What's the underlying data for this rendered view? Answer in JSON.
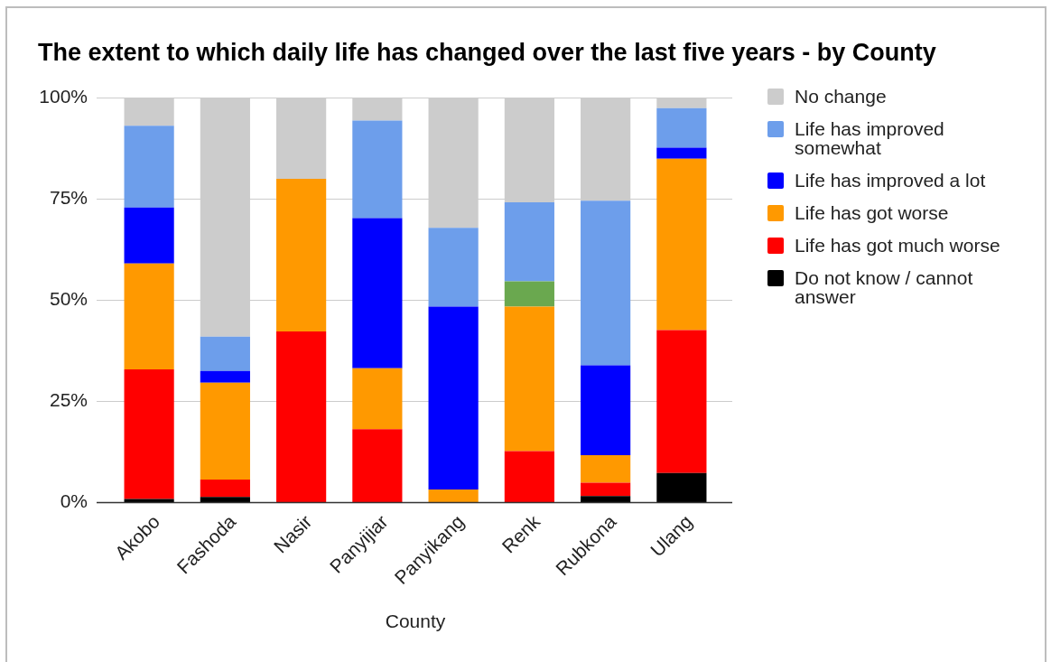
{
  "chart_data": {
    "type": "bar",
    "title": "The extent to which daily life has changed over the last five years - by County",
    "xlabel": "County",
    "categories": [
      "Akobo",
      "Fashoda",
      "Nasir",
      "Panyijiar",
      "Panyikang",
      "Renk",
      "Rubkona",
      "Ulang"
    ],
    "stacked": true,
    "ylim": [
      0,
      100
    ],
    "yticks": [
      {
        "value": 0,
        "label": "0%"
      },
      {
        "value": 25,
        "label": "25%"
      },
      {
        "value": 50,
        "label": "50%"
      },
      {
        "value": 75,
        "label": "75%"
      },
      {
        "value": 100,
        "label": "100%"
      }
    ],
    "grid": "y",
    "legend": "right",
    "series": [
      {
        "name": "Do not know / cannot answer",
        "color": "#000000",
        "values": [
          0.8,
          1.3,
          0,
          0,
          0,
          0,
          1.5,
          7.2
        ]
      },
      {
        "name": "Life has got much worse",
        "color": "#ff0000",
        "values": [
          32.0,
          4.3,
          42.2,
          18.0,
          0,
          12.6,
          3.3,
          35.3
        ]
      },
      {
        "name": "Life has got worse",
        "color": "#ff9900",
        "values": [
          26.2,
          23.9,
          37.7,
          15.1,
          3.1,
          35.7,
          6.8,
          42.4
        ]
      },
      {
        "color": "#6aa84f",
        "values": [
          null,
          null,
          null,
          null,
          null,
          6.3,
          null,
          null
        ]
      },
      {
        "name": "Life has improved a lot",
        "color": "#0000ff",
        "values": [
          13.8,
          2.9,
          0,
          37.1,
          45.2,
          0,
          22.2,
          2.7
        ]
      },
      {
        "name": "Life has improved somewhat",
        "color": "#6d9eeb",
        "values": [
          20.2,
          8.5,
          0,
          24.1,
          19.5,
          19.5,
          40.7,
          9.8
        ]
      },
      {
        "name": "No change",
        "color": "#cccccc",
        "values": [
          7.0,
          59.1,
          20.1,
          5.7,
          32.2,
          25.9,
          25.5,
          2.6
        ]
      }
    ]
  }
}
